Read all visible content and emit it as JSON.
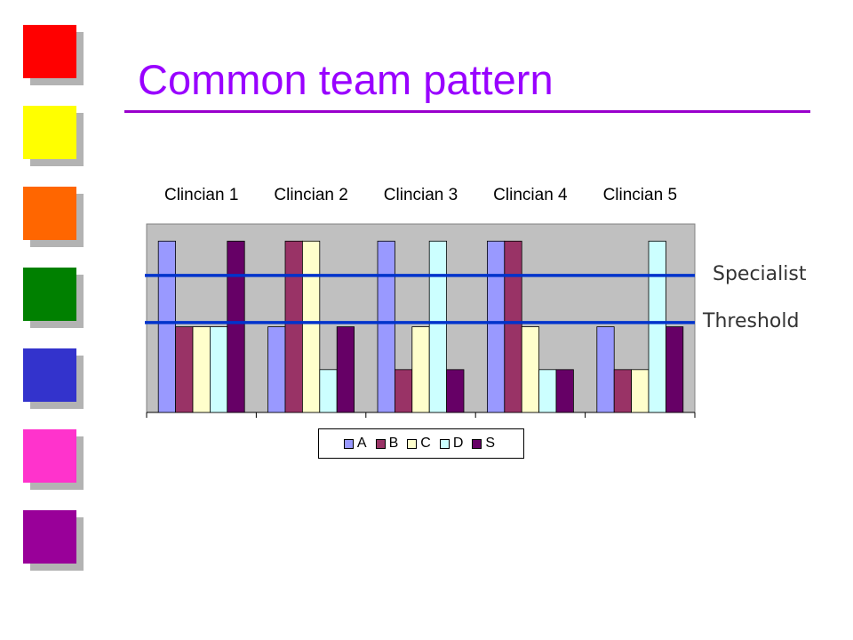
{
  "slide": {
    "title": "Common team pattern",
    "decor_squares": [
      {
        "name": "red-square",
        "color": "#ff0000"
      },
      {
        "name": "yellow-square",
        "color": "#ffff00"
      },
      {
        "name": "orange-square",
        "color": "#ff6600"
      },
      {
        "name": "green-square",
        "color": "#008000"
      },
      {
        "name": "blue-square",
        "color": "#3333cc"
      },
      {
        "name": "pink-square",
        "color": "#ff33cc"
      },
      {
        "name": "purple-square",
        "color": "#990099"
      }
    ]
  },
  "chart_data": {
    "type": "bar",
    "categories": [
      "Clincian 1",
      "Clincian 2",
      "Clincian 3",
      "Clincian 4",
      "Clincian 5"
    ],
    "category_axis_position": "top",
    "series": [
      {
        "name": "A",
        "color": "#9999ff",
        "values": [
          4,
          2,
          4,
          4,
          2
        ]
      },
      {
        "name": "B",
        "color": "#993366",
        "values": [
          2,
          4,
          1,
          4,
          1
        ]
      },
      {
        "name": "C",
        "color": "#ffffcc",
        "values": [
          2,
          4,
          2,
          2,
          1
        ]
      },
      {
        "name": "D",
        "color": "#ccffff",
        "values": [
          2,
          1,
          4,
          1,
          4
        ]
      },
      {
        "name": "S",
        "color": "#660066",
        "values": [
          4,
          2,
          1,
          1,
          2
        ]
      }
    ],
    "ylim": [
      0,
      4.4
    ],
    "y_axis_shown": false,
    "plot_background": "#c0c0c0",
    "legend_position": "bottom",
    "reference_lines": [
      {
        "label": "Specialist",
        "value": 3.2,
        "color": "#0033cc"
      },
      {
        "label": "Threshold",
        "value": 2.1,
        "color": "#0033cc"
      }
    ]
  }
}
